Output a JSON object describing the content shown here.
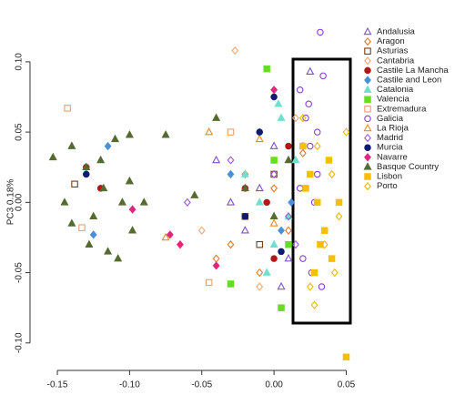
{
  "chart_data": {
    "type": "scatter",
    "y_label": "PC3 0.18%",
    "xlim": [
      -0.1645,
      0.056
    ],
    "ylim": [
      -0.115,
      0.131
    ],
    "xticks": [
      {
        "value": -0.15,
        "label": "-0.15"
      },
      {
        "value": -0.1,
        "label": "-0.10"
      },
      {
        "value": -0.05,
        "label": "-0.05"
      },
      {
        "value": 0,
        "label": "0.00"
      },
      {
        "value": 0.05,
        "label": "0.05"
      }
    ],
    "yticks": [
      {
        "value": -0.1,
        "label": "-0.10"
      },
      {
        "value": -0.05,
        "label": "-0.05"
      },
      {
        "value": 0,
        "label": "0.00"
      },
      {
        "value": 0.05,
        "label": "0.05"
      },
      {
        "value": 0.1,
        "label": "0.10"
      }
    ],
    "legend": "right",
    "series": [
      {
        "name": "Andalusia",
        "color": "#7b52c9",
        "marker": "triangle",
        "filled": false,
        "x": [
          -0.1,
          -0.04,
          -0.02,
          0.0,
          0.01,
          -0.01,
          0.025,
          -0.03,
          0.005
        ],
        "y": [
          0.015,
          0.03,
          -0.02,
          0.04,
          -0.04,
          0.01,
          0.093,
          0.0,
          -0.06
        ]
      },
      {
        "name": "Aragon",
        "color": "#e07b28",
        "marker": "diamond",
        "filled": false,
        "x": [
          -0.03,
          -0.02,
          -0.01,
          0.0,
          0.01,
          -0.04,
          0.02
        ],
        "y": [
          -0.03,
          0.02,
          -0.05,
          0.01,
          -0.02,
          -0.04,
          0.035
        ]
      },
      {
        "name": "Asturias",
        "color": "#7a3b10",
        "marker": "square",
        "filled": false,
        "x": [
          -0.138,
          -0.01,
          0.0,
          -0.02
        ],
        "y": [
          0.013,
          -0.03,
          0.02,
          -0.01
        ]
      },
      {
        "name": "Cantabria",
        "color": "#f0a878",
        "marker": "diamond",
        "filled": false,
        "x": [
          -0.027,
          -0.05,
          0.015,
          -0.01
        ],
        "y": [
          0.108,
          -0.02,
          0.06,
          -0.06
        ]
      },
      {
        "name": "Castile La Mancha",
        "color": "#b01818",
        "marker": "circle",
        "filled": true,
        "x": [
          -0.12,
          -0.13,
          -0.02,
          0.0,
          0.01,
          -0.005
        ],
        "y": [
          0.01,
          0.025,
          0.01,
          -0.04,
          0.04,
          0.0
        ]
      },
      {
        "name": "Castile and Leon",
        "color": "#4a8fd8",
        "marker": "diamond",
        "filled": true,
        "x": [
          -0.125,
          -0.115,
          -0.03,
          0.005,
          -0.01,
          0.012
        ],
        "y": [
          -0.023,
          0.04,
          0.02,
          -0.02,
          0.05,
          0.0
        ]
      },
      {
        "name": "Catalonia",
        "color": "#6fe0d0",
        "marker": "triangle",
        "filled": true,
        "x": [
          -0.01,
          0.0,
          0.005,
          -0.02,
          0.01,
          -0.005,
          0.015,
          0.003
        ],
        "y": [
          0.0,
          -0.03,
          0.06,
          0.02,
          -0.01,
          -0.05,
          0.03,
          0.07
        ]
      },
      {
        "name": "Valencia",
        "color": "#66dd22",
        "marker": "square",
        "filled": true,
        "x": [
          -0.005,
          0.0,
          -0.03,
          0.01,
          0.005
        ],
        "y": [
          0.095,
          0.03,
          -0.058,
          -0.03,
          -0.075
        ]
      },
      {
        "name": "Extremadura",
        "color": "#e8a070",
        "marker": "square",
        "filled": false,
        "x": [
          -0.143,
          -0.133,
          -0.045,
          -0.03
        ],
        "y": [
          0.067,
          -0.018,
          -0.057,
          0.05
        ]
      },
      {
        "name": "Galicia",
        "color": "#8a3fd0",
        "marker": "circle",
        "filled": false,
        "x": [
          0.018,
          0.022,
          0.025,
          0.03,
          0.028,
          0.035,
          0.02,
          0.033,
          0.024,
          0.03,
          0.018,
          0.026,
          0.032,
          0.034
        ],
        "y": [
          0.08,
          0.06,
          0.04,
          0.02,
          0.0,
          -0.02,
          -0.04,
          -0.06,
          0.07,
          0.05,
          0.01,
          -0.05,
          0.121,
          0.09
        ]
      },
      {
        "name": "La Rioja",
        "color": "#f08a20",
        "marker": "triangle",
        "filled": false,
        "x": [
          -0.045,
          -0.075,
          -0.01,
          0.0
        ],
        "y": [
          0.05,
          -0.025,
          0.045,
          -0.015
        ]
      },
      {
        "name": "Madrid",
        "color": "#9a58d8",
        "marker": "diamond",
        "filled": false,
        "x": [
          -0.06,
          -0.03,
          0.0,
          0.01,
          0.02,
          0.015
        ],
        "y": [
          0.0,
          0.03,
          0.02,
          -0.01,
          0.04,
          -0.03
        ]
      },
      {
        "name": "Murcia",
        "color": "#101a70",
        "marker": "circle",
        "filled": true,
        "x": [
          -0.13,
          0.0,
          -0.01,
          0.005,
          -0.02
        ],
        "y": [
          0.02,
          0.075,
          0.05,
          -0.035,
          -0.01
        ]
      },
      {
        "name": "Navarre",
        "color": "#e0287a",
        "marker": "diamond",
        "filled": true,
        "x": [
          -0.098,
          -0.072,
          -0.065,
          -0.04,
          0.0
        ],
        "y": [
          -0.005,
          -0.023,
          -0.03,
          -0.045,
          0.08
        ]
      },
      {
        "name": "Basque Country",
        "color": "#556b2f",
        "marker": "triangle",
        "filled": true,
        "x": [
          -0.153,
          -0.145,
          -0.14,
          -0.13,
          -0.125,
          -0.12,
          -0.115,
          -0.11,
          -0.105,
          -0.1,
          -0.14,
          -0.128,
          -0.118,
          -0.108,
          -0.098,
          -0.1,
          -0.09,
          -0.075,
          -0.055,
          -0.04,
          -0.02,
          0.0,
          0.01
        ],
        "y": [
          0.032,
          0.0,
          0.04,
          0.025,
          -0.01,
          0.03,
          -0.035,
          0.045,
          0.0,
          0.015,
          -0.015,
          -0.03,
          0.01,
          -0.04,
          -0.02,
          0.048,
          0.0,
          0.048,
          0.005,
          0.06,
          0.01,
          -0.01,
          0.03
        ]
      },
      {
        "name": "Lisbon",
        "color": "#f5c000",
        "marker": "square",
        "filled": true,
        "x": [
          0.02,
          0.025,
          0.03,
          0.035,
          0.04,
          0.028,
          0.022,
          0.038,
          0.032,
          0.045,
          0.05
        ],
        "y": [
          0.04,
          0.02,
          0.0,
          -0.02,
          -0.04,
          -0.05,
          0.01,
          0.03,
          -0.03,
          0.0,
          -0.11
        ]
      },
      {
        "name": "Porto",
        "color": "#f0b800",
        "marker": "diamond",
        "filled": false,
        "x": [
          0.02,
          0.03,
          0.04,
          0.045,
          0.035,
          0.025,
          0.05,
          0.042,
          0.028
        ],
        "y": [
          0.06,
          0.04,
          0.02,
          -0.01,
          -0.03,
          -0.06,
          0.05,
          -0.05,
          -0.073
        ]
      }
    ]
  }
}
